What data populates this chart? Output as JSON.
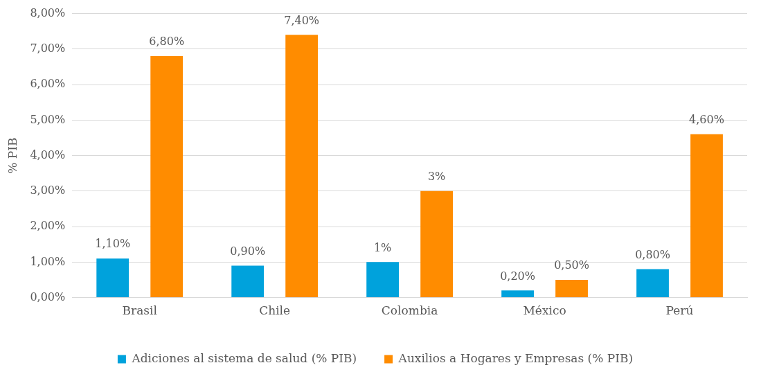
{
  "chart_data": {
    "type": "bar",
    "ylabel": "% PIB",
    "categories": [
      "Brasil",
      "Chile",
      "Colombia",
      "México",
      "Perú"
    ],
    "series": [
      {
        "name": "Adiciones al sistema de salud (% PIB)",
        "color": "#00a2dc",
        "values": [
          1.1,
          0.9,
          1,
          0.2,
          0.8
        ],
        "value_labels": [
          "1,10%",
          "0,90%",
          "1%",
          "0,20%",
          "0,80%"
        ]
      },
      {
        "name": "Auxilios a Hogares y Empresas (% PIB)",
        "color": "#ff8c00",
        "values": [
          6.8,
          7.4,
          3,
          0.5,
          4.6
        ],
        "value_labels": [
          "6,80%",
          "7,40%",
          "3%",
          "0,50%",
          "4,60%"
        ]
      }
    ],
    "ylim": [
      0,
      8
    ],
    "yticks": [
      {
        "value": 0,
        "label": "0,00%"
      },
      {
        "value": 1,
        "label": "1,00%"
      },
      {
        "value": 2,
        "label": "2,00%"
      },
      {
        "value": 3,
        "label": "3,00%"
      },
      {
        "value": 4,
        "label": "4,00%"
      },
      {
        "value": 5,
        "label": "5,00%"
      },
      {
        "value": 6,
        "label": "6,00%"
      },
      {
        "value": 7,
        "label": "7,00%"
      },
      {
        "value": 8,
        "label": "8,00%"
      }
    ],
    "grid": "y",
    "legend": "bottom"
  }
}
